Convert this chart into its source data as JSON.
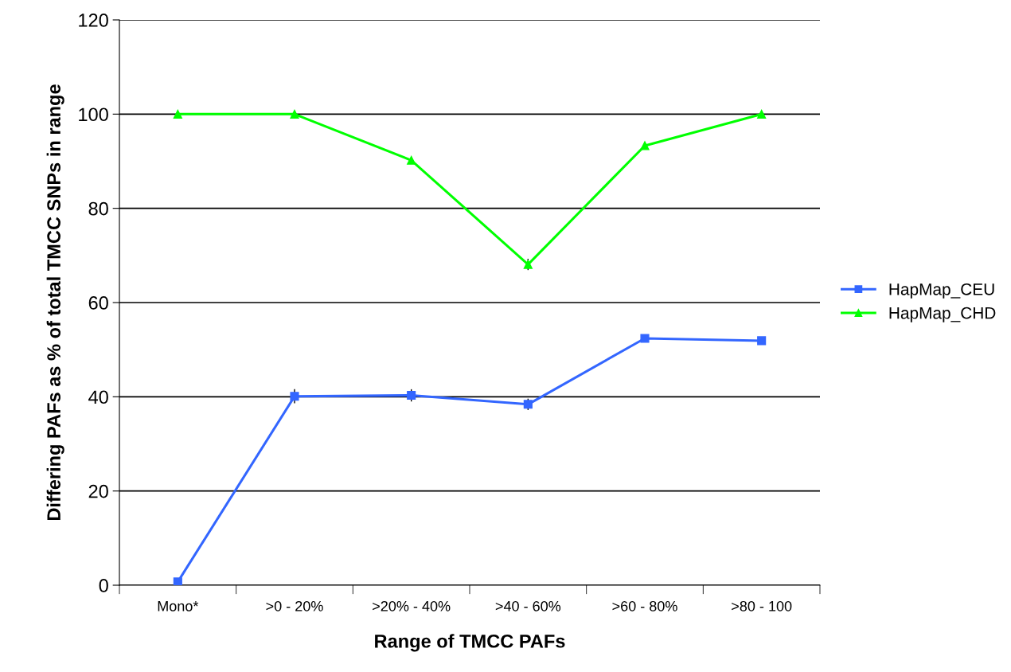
{
  "chart_data": {
    "type": "line",
    "xlabel": "Range of TMCC PAFs",
    "ylabel": "Differing PAFs as % of total TMCC SNPs in range",
    "categories": [
      "Mono*",
      ">0 - 20%",
      ">20% - 40%",
      ">40 - 60%",
      ">60 - 80%",
      ">80 - 100"
    ],
    "series": [
      {
        "name": "HapMap_CEU",
        "color": "#3366ff",
        "marker": "square",
        "values": [
          0.7,
          40.1,
          40.3,
          38.4,
          52.4,
          51.9
        ],
        "errors": [
          null,
          1.5,
          1.3,
          1.2,
          null,
          null
        ]
      },
      {
        "name": "HapMap_CHD",
        "color": "#00ff00",
        "marker": "triangle",
        "values": [
          100,
          100,
          90.2,
          68.1,
          93.3,
          100
        ],
        "errors": [
          null,
          null,
          null,
          1.2,
          null,
          null
        ]
      }
    ],
    "ylim": [
      0,
      120
    ],
    "yticks": [
      0,
      20,
      40,
      60,
      80,
      100,
      120
    ],
    "grid": "y",
    "legend": "right",
    "line_style": "solid"
  }
}
